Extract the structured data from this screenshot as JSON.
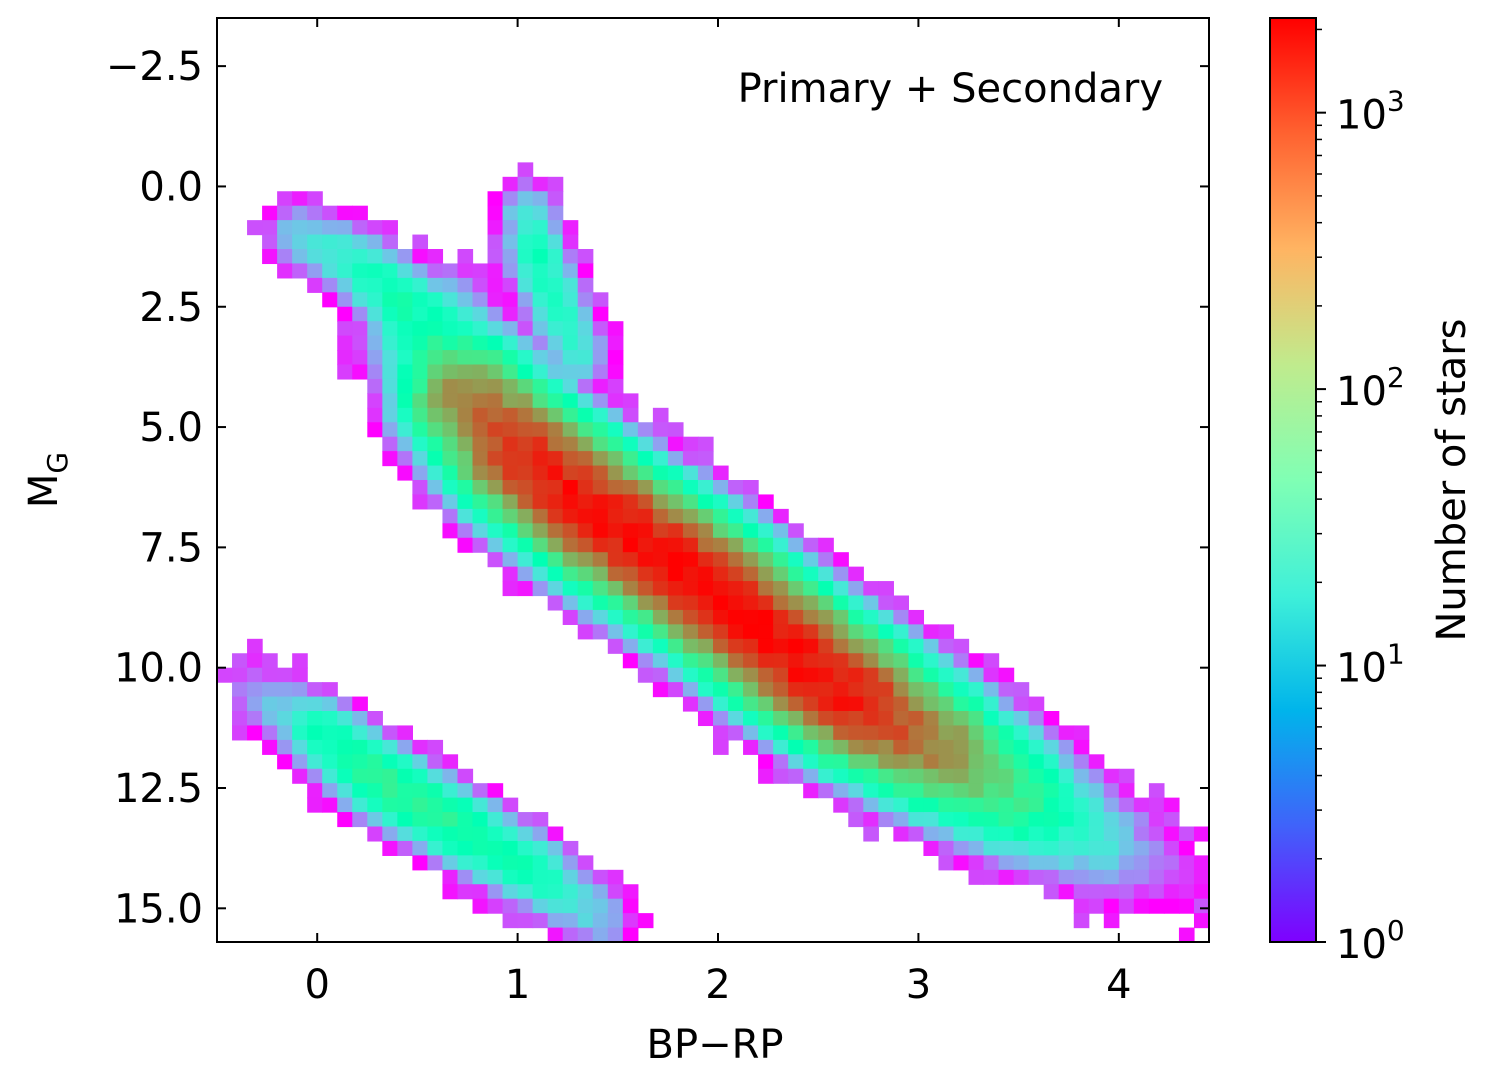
{
  "chart_data": {
    "type": "heatmap",
    "annotation": "Primary + Secondary",
    "xlabel": "BP−RP",
    "ylabel": "M",
    "ylabel_sub": "G",
    "xlim": [
      -0.5,
      4.45
    ],
    "ylim": [
      15.7,
      -3.5
    ],
    "y_inverted": true,
    "x_ticks": [
      0,
      1,
      2,
      3,
      4
    ],
    "x_tick_labels": [
      "0",
      "1",
      "2",
      "3",
      "4"
    ],
    "y_ticks": [
      -2.5,
      0.0,
      2.5,
      5.0,
      7.5,
      10.0,
      12.5,
      15.0
    ],
    "y_tick_labels": [
      "−2.5",
      "0.0",
      "2.5",
      "5.0",
      "7.5",
      "10.0",
      "12.5",
      "15.0"
    ],
    "bin_width_x": 0.075,
    "bin_height_y": 0.3,
    "colormap": "rainbow",
    "color_scale": "log",
    "colorbar": {
      "label": "Number of stars",
      "range": [
        1,
        2200
      ],
      "ticks": [
        1,
        10,
        100,
        1000
      ],
      "tick_bases": [
        "10",
        "10",
        "10",
        "10"
      ],
      "tick_exponents": [
        "0",
        "1",
        "2",
        "3"
      ]
    },
    "grid": false,
    "description_components": [
      {
        "name": "main sequence ridge",
        "points": [
          [
            0.55,
            3.0,
            50
          ],
          [
            0.75,
            4.4,
            600
          ],
          [
            1.0,
            5.5,
            1500
          ],
          [
            1.4,
            6.8,
            2000
          ],
          [
            1.9,
            8.2,
            2000
          ],
          [
            2.3,
            9.5,
            2100
          ],
          [
            2.7,
            10.7,
            1800
          ],
          [
            3.1,
            11.7,
            600
          ],
          [
            3.5,
            12.7,
            120
          ],
          [
            3.9,
            13.6,
            15
          ],
          [
            4.3,
            14.4,
            2
          ]
        ]
      },
      {
        "name": "upper main sequence",
        "points": [
          [
            -0.1,
            1.0,
            10
          ],
          [
            0.2,
            1.6,
            30
          ],
          [
            0.45,
            2.5,
            60
          ]
        ]
      },
      {
        "name": "giant branch",
        "points": [
          [
            1.05,
            0.5,
            15
          ],
          [
            1.1,
            1.5,
            40
          ],
          [
            1.2,
            2.5,
            30
          ],
          [
            1.3,
            3.5,
            20
          ]
        ]
      },
      {
        "name": "white dwarf sequence",
        "points": [
          [
            -0.3,
            10.5,
            5
          ],
          [
            0.0,
            11.3,
            40
          ],
          [
            0.3,
            12.3,
            100
          ],
          [
            0.7,
            13.3,
            80
          ],
          [
            1.1,
            14.3,
            40
          ],
          [
            1.4,
            15.2,
            10
          ]
        ]
      }
    ]
  }
}
